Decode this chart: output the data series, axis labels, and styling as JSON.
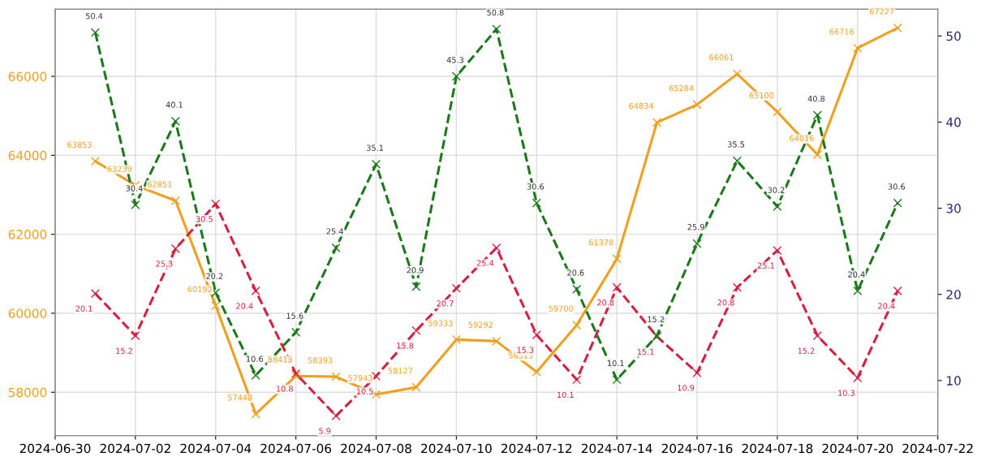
{
  "chart_data": {
    "type": "line",
    "x": [
      "2024-07-01",
      "2024-07-02",
      "2024-07-03",
      "2024-07-04",
      "2024-07-05",
      "2024-07-06",
      "2024-07-07",
      "2024-07-08",
      "2024-07-09",
      "2024-07-10",
      "2024-07-11",
      "2024-07-12",
      "2024-07-13",
      "2024-07-14",
      "2024-07-15",
      "2024-07-16",
      "2024-07-17",
      "2024-07-18",
      "2024-07-19",
      "2024-07-20",
      "2024-07-21"
    ],
    "series": [
      {
        "color": "#f0a020",
        "line_style": "solid",
        "values": [
          63853,
          63239,
          62851,
          60192,
          57448,
          58413,
          58393,
          57943,
          58127,
          59333,
          59292,
          58515,
          59700,
          61378,
          64834,
          65284,
          66061,
          65100,
          64016,
          66716,
          67227
        ]
      },
      {
        "color": "#d62040",
        "line_style": "dashed",
        "axis": "y2",
        "values": [
          20.1,
          15.2,
          25.3,
          30.5,
          20.4,
          10.8,
          5.9,
          10.5,
          15.8,
          20.7,
          25.4,
          15.3,
          10.1,
          20.8,
          15.1,
          10.9,
          20.8,
          25.1,
          15.2,
          10.3,
          20.4
        ]
      },
      {
        "color": "#1a7a1a",
        "line_style": "dashed",
        "axis": "y2",
        "values": [
          50.4,
          30.4,
          40.1,
          20.2,
          10.6,
          15.6,
          25.4,
          35.1,
          20.9,
          45.3,
          50.8,
          30.6,
          20.6,
          10.1,
          15.2,
          25.9,
          35.5,
          30.2,
          40.8,
          20.4,
          30.6
        ]
      }
    ],
    "xlim": [
      "2024-06-30",
      "2024-07-22"
    ],
    "xticks": [
      "2024-06-30",
      "2024-07-02",
      "2024-07-04",
      "2024-07-06",
      "2024-07-08",
      "2024-07-10",
      "2024-07-12",
      "2024-07-14",
      "2024-07-16",
      "2024-07-18",
      "2024-07-20",
      "2024-07-22"
    ],
    "ylim": [
      56900,
      67700
    ],
    "yticks": [
      58000,
      60000,
      62000,
      64000,
      66000
    ],
    "y2lim": [
      3.6,
      53.1
    ],
    "y2ticks": [
      10,
      20,
      30,
      40,
      50
    ],
    "marker": "cross",
    "grid": true,
    "data_labels": true
  }
}
